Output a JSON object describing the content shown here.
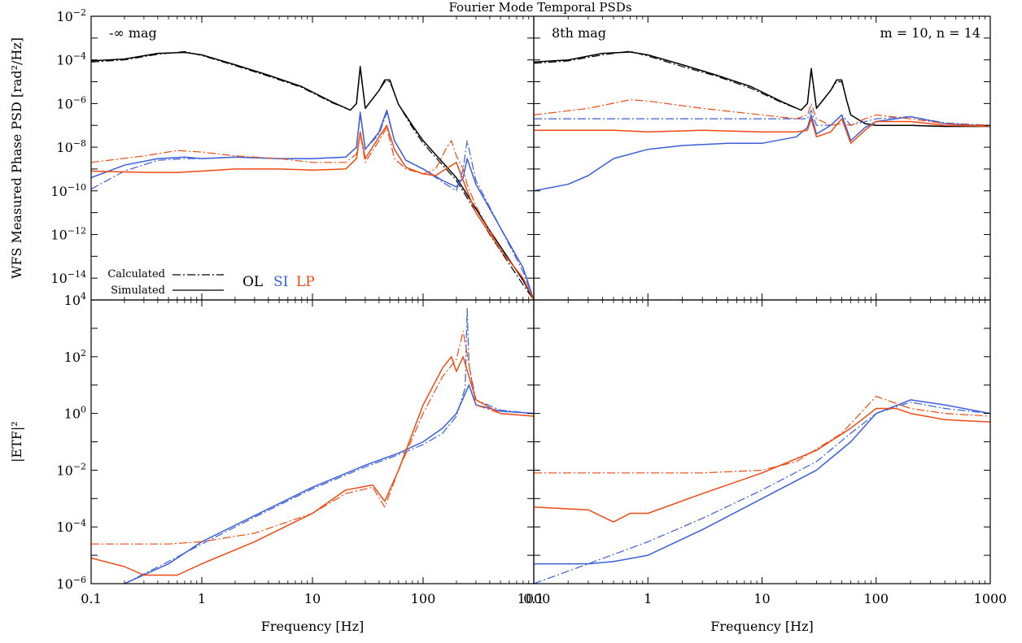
{
  "figure_title": "Fourier Mode Temporal PSDs",
  "colors": {
    "OL": "#000000",
    "SI": "#3a5fd9",
    "LP": "#f04a12"
  },
  "chart_data": [
    {
      "type": "line",
      "panel": "top-left",
      "xscale": "log",
      "yscale": "log",
      "xlim": [
        0.1,
        1000
      ],
      "ylim": [
        1e-15,
        0.01
      ],
      "ylabel": "WFS Measured Phase PSD [rad²/Hz]",
      "annotation_left": "-∞ mag",
      "legend": {
        "calculated": "Calculated",
        "simulated": "Simulated",
        "OL": "OL",
        "SI": "SI",
        "LP": "LP"
      },
      "series": [
        {
          "name": "OL",
          "style": "solid",
          "x": [
            0.1,
            0.2,
            0.4,
            0.7,
            1,
            2,
            4,
            8,
            15,
            22,
            25,
            27,
            30,
            40,
            45,
            50,
            55,
            60,
            80,
            100,
            200,
            400,
            800,
            1000
          ],
          "y": [
            9e-05,
            0.00011,
            0.0002,
            0.00022,
            0.00017,
            6e-05,
            2e-05,
            6e-06,
            1.2e-06,
            5e-07,
            1e-06,
            5e-05,
            6e-07,
            4e-06,
            1.2e-05,
            1.2e-05,
            3e-06,
            9e-07,
            1e-07,
            2e-08,
            4e-10,
            1.5e-12,
            8e-15,
            1e-15
          ]
        },
        {
          "name": "OL",
          "style": "dashdot",
          "x": [
            0.1,
            0.2,
            0.4,
            0.7,
            1,
            2,
            4,
            8,
            15,
            22,
            25,
            27,
            30,
            40,
            45,
            50,
            55,
            60,
            80,
            100,
            200,
            400,
            800,
            1000
          ],
          "y": [
            8e-05,
            0.0001,
            0.00018,
            0.00024,
            0.00016,
            5.5e-05,
            1.8e-05,
            5.5e-06,
            1.1e-06,
            5e-07,
            1e-06,
            4e-05,
            6e-07,
            4e-06,
            1e-05,
            1e-05,
            3e-06,
            9e-07,
            8e-08,
            1.5e-08,
            3e-10,
            1e-12,
            5e-15,
            1e-15
          ]
        },
        {
          "name": "SI",
          "style": "solid",
          "x": [
            0.1,
            0.2,
            0.4,
            0.7,
            1,
            2,
            5,
            10,
            20,
            25,
            27,
            30,
            40,
            47,
            55,
            70,
            100,
            150,
            200,
            230,
            250,
            300,
            500,
            800,
            1000
          ],
          "y": [
            4e-10,
            1.5e-09,
            3e-09,
            3.5e-09,
            3e-09,
            3.5e-09,
            3e-09,
            3e-09,
            3.5e-09,
            1e-08,
            4e-07,
            8e-09,
            5e-08,
            5e-07,
            2e-08,
            2.5e-09,
            1e-09,
            3e-10,
            1.5e-10,
            4e-10,
            3e-09,
            2e-10,
            2e-12,
            3e-14,
            1e-15
          ]
        },
        {
          "name": "SI",
          "style": "dashdot",
          "x": [
            0.1,
            0.2,
            0.4,
            0.7,
            1,
            2,
            5,
            10,
            20,
            25,
            27,
            30,
            40,
            47,
            55,
            70,
            100,
            150,
            200,
            230,
            250,
            300,
            500,
            800,
            1000
          ],
          "y": [
            1.2e-10,
            8e-10,
            2.5e-09,
            3e-09,
            3e-09,
            3.5e-09,
            3e-09,
            3e-09,
            3.5e-09,
            1e-08,
            3e-07,
            8e-09,
            4e-08,
            4e-07,
            2e-08,
            2.5e-09,
            1e-09,
            2.5e-10,
            1e-10,
            1e-09,
            2e-08,
            3e-10,
            2e-12,
            2e-14,
            1e-15
          ]
        },
        {
          "name": "LP",
          "style": "solid",
          "x": [
            0.1,
            0.3,
            0.6,
            1,
            2,
            5,
            10,
            20,
            25,
            27,
            30,
            40,
            47,
            55,
            70,
            100,
            130,
            160,
            200,
            250,
            300,
            500,
            800,
            1000
          ],
          "y": [
            8e-10,
            7e-10,
            7e-10,
            8e-10,
            1e-09,
            1e-09,
            9e-10,
            1e-09,
            3e-09,
            5e-08,
            3e-09,
            3e-08,
            1e-07,
            8e-09,
            1.2e-09,
            6e-10,
            5e-10,
            1e-09,
            2e-09,
            1e-10,
            1e-11,
            2e-13,
            1e-14,
            1e-15
          ]
        },
        {
          "name": "LP",
          "style": "dashdot",
          "x": [
            0.1,
            0.3,
            0.6,
            1,
            2,
            5,
            10,
            20,
            25,
            27,
            30,
            40,
            47,
            55,
            70,
            100,
            130,
            160,
            180,
            200,
            230,
            250,
            300,
            500,
            800,
            1000
          ],
          "y": [
            2e-09,
            4e-09,
            7e-09,
            6e-09,
            4e-09,
            3e-09,
            2e-09,
            2e-09,
            5e-09,
            4e-08,
            2e-09,
            2e-08,
            8e-08,
            3e-09,
            1e-09,
            6e-10,
            1e-09,
            8e-09,
            2e-08,
            4e-09,
            1e-09,
            2e-10,
            2e-11,
            2e-13,
            1e-14,
            1e-15
          ]
        }
      ]
    },
    {
      "type": "line",
      "panel": "top-right",
      "xscale": "log",
      "yscale": "log",
      "xlim": [
        0.1,
        1000
      ],
      "ylim": [
        1e-15,
        0.01
      ],
      "annotation_left": "8th mag",
      "annotation_right": "m = 10, n = 14",
      "series": [
        {
          "name": "OL",
          "style": "solid",
          "x": [
            0.1,
            0.2,
            0.4,
            0.7,
            1,
            2,
            4,
            8,
            15,
            22,
            25,
            27,
            30,
            40,
            45,
            50,
            55,
            60,
            80,
            100,
            200,
            400,
            1000
          ],
          "y": [
            8e-05,
            0.0001,
            0.0002,
            0.00023,
            0.00017,
            6e-05,
            2e-05,
            6e-06,
            1.2e-06,
            5e-07,
            1e-06,
            4e-05,
            6e-07,
            4e-06,
            1.2e-05,
            1.2e-05,
            1.5e-06,
            3e-07,
            1.2e-07,
            1e-07,
            1e-07,
            9e-08,
            9e-08
          ]
        },
        {
          "name": "OL",
          "style": "dashdot",
          "x": [
            0.1,
            0.2,
            0.4,
            0.7,
            1,
            2,
            4,
            8,
            15,
            22,
            25,
            27,
            30,
            40,
            45,
            50,
            55,
            60,
            80,
            100,
            200,
            400,
            1000
          ],
          "y": [
            7e-05,
            9e-05,
            0.00017,
            0.00025,
            0.00015,
            5e-05,
            1.8e-05,
            5e-06,
            1.1e-06,
            5e-07,
            1e-06,
            3.5e-05,
            6e-07,
            4e-06,
            1e-05,
            1e-05,
            1.5e-06,
            3e-07,
            1.2e-07,
            1e-07,
            1e-07,
            9e-08,
            9e-08
          ]
        },
        {
          "name": "SI",
          "style": "solid",
          "x": [
            0.1,
            0.2,
            0.3,
            0.5,
            1,
            2,
            5,
            10,
            20,
            25,
            27,
            30,
            40,
            50,
            60,
            80,
            100,
            200,
            400,
            1000
          ],
          "y": [
            1e-10,
            2e-10,
            5e-10,
            3e-09,
            8e-09,
            1.2e-08,
            1.5e-08,
            1.5e-08,
            3e-08,
            8e-08,
            3e-07,
            4e-08,
            1e-07,
            3e-07,
            2e-08,
            8e-08,
            1.5e-07,
            2.5e-07,
            1.2e-07,
            9e-08
          ]
        },
        {
          "name": "SI",
          "style": "dashdot",
          "x": [
            0.1,
            1,
            10,
            20,
            25,
            27,
            30,
            40,
            50,
            60,
            80,
            100,
            200,
            400,
            1000
          ],
          "y": [
            2e-07,
            2e-07,
            2e-07,
            2e-07,
            2e-07,
            5e-07,
            1e-07,
            1e-07,
            3e-07,
            1e-07,
            1.5e-07,
            2e-07,
            2.5e-07,
            1.3e-07,
            1e-07
          ]
        },
        {
          "name": "LP",
          "style": "solid",
          "x": [
            0.1,
            0.5,
            1,
            3,
            10,
            20,
            25,
            27,
            30,
            40,
            50,
            60,
            80,
            100,
            200,
            400,
            1000
          ],
          "y": [
            6e-08,
            6e-08,
            5e-08,
            6e-08,
            5e-08,
            5e-08,
            6e-08,
            2e-07,
            3e-08,
            5e-08,
            2e-07,
            1.5e-08,
            6e-08,
            1.5e-07,
            1.5e-07,
            1e-07,
            9e-08
          ]
        },
        {
          "name": "LP",
          "style": "dashdot",
          "x": [
            0.1,
            0.3,
            0.7,
            1,
            3,
            10,
            20,
            25,
            27,
            30,
            40,
            50,
            60,
            80,
            100,
            200,
            400,
            1000
          ],
          "y": [
            3e-07,
            6e-07,
            1.5e-06,
            1.3e-06,
            6e-07,
            3e-07,
            2e-07,
            3e-07,
            1e-06,
            2e-07,
            1e-07,
            1.2e-07,
            1e-07,
            2e-07,
            3e-07,
            2e-07,
            1.2e-07,
            1e-07
          ]
        }
      ]
    },
    {
      "type": "line",
      "panel": "bottom-left",
      "xscale": "log",
      "yscale": "log",
      "xlim": [
        0.1,
        1000
      ],
      "ylim": [
        1e-06,
        10000
      ],
      "xlabel": "Frequency [Hz]",
      "ylabel": "|ETF|²",
      "series": [
        {
          "name": "SI",
          "style": "solid",
          "x": [
            0.2,
            0.5,
            1,
            3,
            10,
            30,
            60,
            100,
            150,
            200,
            240,
            260,
            300,
            500,
            1000
          ],
          "y": [
            1e-06,
            5e-06,
            3e-05,
            0.00025,
            0.0025,
            0.015,
            0.04,
            0.1,
            0.3,
            1,
            5,
            10,
            2,
            1.2,
            1
          ]
        },
        {
          "name": "SI",
          "style": "dashdot",
          "x": [
            0.2,
            0.5,
            1,
            3,
            10,
            30,
            60,
            100,
            150,
            200,
            240,
            250,
            260,
            300,
            500,
            1000
          ],
          "y": [
            1e-06,
            6e-06,
            2.5e-05,
            0.00022,
            0.0022,
            0.013,
            0.035,
            0.08,
            0.2,
            0.8,
            8,
            5000,
            50,
            3,
            1.3,
            1
          ]
        },
        {
          "name": "LP",
          "style": "solid",
          "x": [
            0.1,
            0.2,
            0.3,
            0.6,
            1,
            3,
            10,
            20,
            35,
            45,
            60,
            100,
            150,
            180,
            200,
            230,
            300,
            500,
            1000
          ],
          "y": [
            8e-06,
            4e-06,
            2e-06,
            2e-06,
            5e-06,
            3e-05,
            0.0003,
            0.002,
            0.003,
            0.0008,
            0.01,
            2,
            40,
            100,
            30,
            100,
            3,
            1,
            0.8
          ]
        },
        {
          "name": "LP",
          "style": "dashdot",
          "x": [
            0.1,
            0.5,
            1,
            3,
            10,
            20,
            35,
            45,
            60,
            100,
            150,
            200,
            230,
            300,
            500,
            1000
          ],
          "y": [
            2.5e-05,
            2.5e-05,
            3e-05,
            6e-05,
            0.0003,
            0.0015,
            0.0025,
            0.0005,
            0.01,
            1,
            20,
            80,
            800,
            2,
            1,
            0.8
          ]
        }
      ]
    },
    {
      "type": "line",
      "panel": "bottom-right",
      "xscale": "log",
      "yscale": "log",
      "xlim": [
        0.1,
        1000
      ],
      "ylim": [
        1e-06,
        10000
      ],
      "xlabel": "Frequency [Hz]",
      "series": [
        {
          "name": "SI",
          "style": "solid",
          "x": [
            0.1,
            0.3,
            0.5,
            1,
            3,
            10,
            30,
            60,
            100,
            200,
            400,
            1000
          ],
          "y": [
            5e-06,
            5e-06,
            6e-06,
            1e-05,
            8e-05,
            0.001,
            0.01,
            0.1,
            1,
            3,
            2,
            1
          ]
        },
        {
          "name": "SI",
          "style": "dashdot",
          "x": [
            0.1,
            0.3,
            1,
            3,
            10,
            30,
            60,
            100,
            200,
            400,
            1000
          ],
          "y": [
            1e-06,
            5e-06,
            3e-05,
            0.0002,
            0.002,
            0.02,
            0.2,
            1,
            2.5,
            1.5,
            1
          ]
        },
        {
          "name": "LP",
          "style": "solid",
          "x": [
            0.1,
            0.3,
            0.5,
            0.7,
            1,
            3,
            10,
            30,
            60,
            100,
            150,
            200,
            400,
            1000
          ],
          "y": [
            0.0005,
            0.0004,
            0.00015,
            0.0003,
            0.0003,
            0.0015,
            0.008,
            0.05,
            0.3,
            1.5,
            1.5,
            1,
            0.6,
            0.5
          ]
        },
        {
          "name": "LP",
          "style": "dashdot",
          "x": [
            0.1,
            0.5,
            1,
            3,
            10,
            20,
            50,
            100,
            200,
            400,
            1000
          ],
          "y": [
            0.008,
            0.008,
            0.008,
            0.008,
            0.01,
            0.02,
            0.2,
            4,
            1.5,
            1,
            0.8
          ]
        }
      ]
    }
  ]
}
